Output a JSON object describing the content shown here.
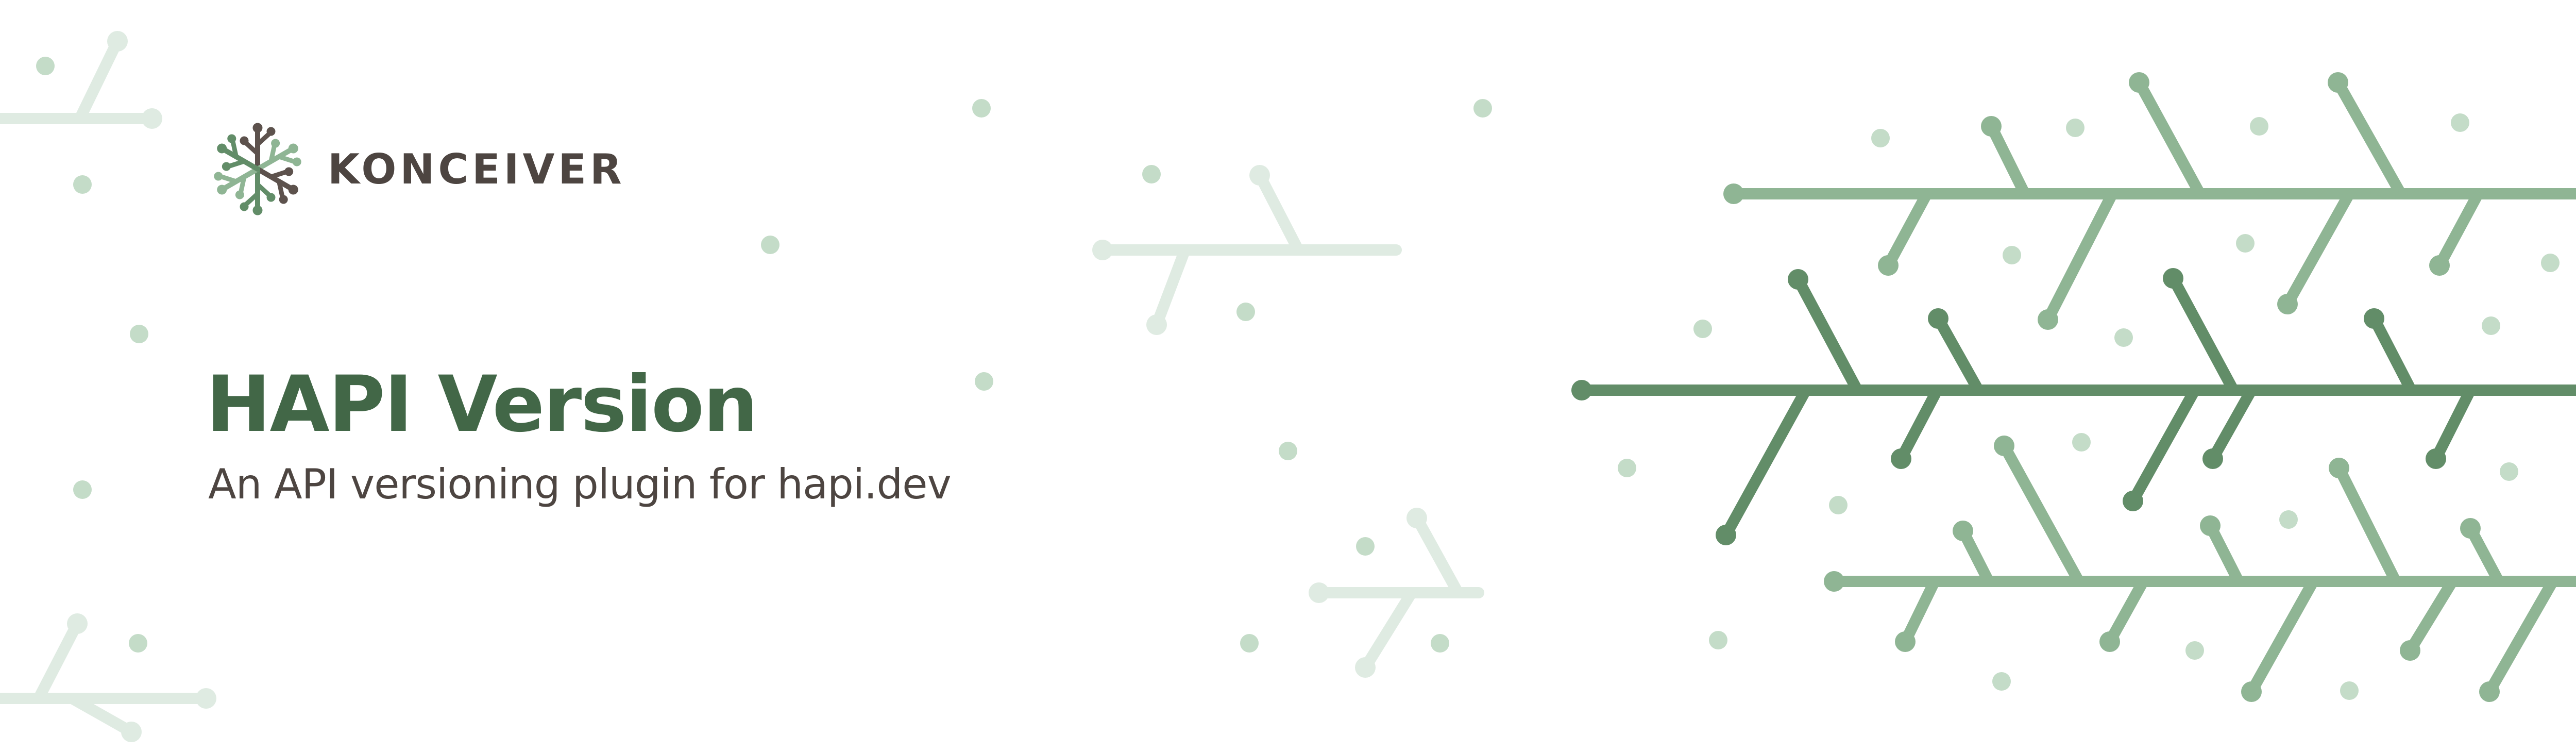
{
  "brand": {
    "name": "KONCEIVER",
    "logo_icon": "snowflake-tree-icon"
  },
  "hero": {
    "title": "HAPI Version",
    "subtitle": "An API versioning plugin for hapi.dev"
  },
  "colors": {
    "title": "#426747",
    "text": "#4d4541",
    "dark_branch": "#628d68",
    "mid_branch": "#8fb594",
    "faint_branch": "#dce9df",
    "dot": "#bfd9c4"
  }
}
